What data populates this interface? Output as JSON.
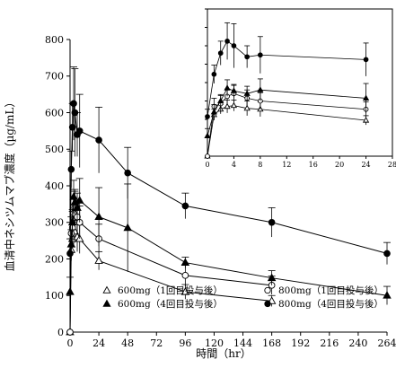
{
  "chart_data": [
    {
      "id": "main",
      "type": "line",
      "xlabel": "時間（hr）",
      "ylabel": "血清中ネシツムマブ濃度（µg/mL）",
      "xlim": [
        0,
        264
      ],
      "ylim": [
        0,
        800
      ],
      "xticks": [
        0,
        24,
        48,
        72,
        96,
        120,
        144,
        168,
        192,
        216,
        240,
        264
      ],
      "yticks": [
        0,
        100,
        200,
        300,
        400,
        500,
        600,
        700,
        800
      ],
      "grid": false,
      "legend_position": "bottom-center",
      "series": [
        {
          "key": "s600_first",
          "name": "600mg（1回目投与後）",
          "marker": "triangle-open",
          "x": [
            0,
            1,
            2,
            3,
            4,
            6,
            8,
            24,
            96,
            168
          ],
          "y": [
            0,
            225,
            255,
            270,
            275,
            260,
            255,
            195,
            110,
            85
          ],
          "err": [
            0,
            30,
            25,
            35,
            30,
            40,
            40,
            25,
            20,
            15
          ]
        },
        {
          "key": "s800_first",
          "name": "800mg（1回目投与後）",
          "marker": "circle-open",
          "x": [
            0,
            1,
            2,
            3,
            4,
            6,
            8,
            24,
            96,
            168
          ],
          "y": [
            0,
            270,
            285,
            325,
            340,
            315,
            300,
            255,
            155,
            128
          ],
          "err": [
            0,
            45,
            45,
            40,
            45,
            45,
            45,
            40,
            30,
            25
          ]
        },
        {
          "key": "s600_fourth",
          "name": "600mg（4回目投与後）",
          "marker": "triangle-filled",
          "x": [
            0,
            1,
            2,
            3,
            4,
            6,
            8,
            24,
            48,
            96,
            168,
            264
          ],
          "y": [
            110,
            240,
            300,
            370,
            355,
            340,
            360,
            315,
            285,
            190,
            148,
            100
          ],
          "err": [
            40,
            40,
            35,
            45,
            35,
            40,
            60,
            80,
            120,
            15,
            20,
            25
          ]
        },
        {
          "key": "s800_fourth",
          "name": "800mg（4回目投与後）",
          "marker": "circle-filled",
          "x": [
            0,
            1,
            2,
            3,
            4,
            6,
            8,
            24,
            48,
            96,
            168,
            264
          ],
          "y": [
            215,
            445,
            560,
            625,
            600,
            540,
            550,
            525,
            435,
            345,
            300,
            215
          ],
          "err": [
            40,
            50,
            65,
            100,
            120,
            60,
            100,
            90,
            70,
            35,
            40,
            30
          ]
        }
      ]
    },
    {
      "id": "inset",
      "type": "line",
      "xlim": [
        0,
        28
      ],
      "ylim": [
        0,
        800
      ],
      "xticks": [
        0,
        4,
        8,
        12,
        16,
        20,
        24,
        28
      ],
      "yticks": [
        0,
        100,
        200,
        300,
        400,
        500,
        600,
        700,
        800
      ],
      "grid": false,
      "series": [
        {
          "key": "s600_first",
          "marker": "triangle-open",
          "x": [
            0,
            1,
            2,
            3,
            4,
            6,
            8,
            24
          ],
          "y": [
            0,
            225,
            255,
            270,
            275,
            260,
            255,
            195
          ],
          "err": [
            0,
            30,
            25,
            35,
            30,
            40,
            40,
            25
          ]
        },
        {
          "key": "s800_first",
          "marker": "circle-open",
          "x": [
            0,
            1,
            2,
            3,
            4,
            6,
            8,
            24
          ],
          "y": [
            0,
            270,
            285,
            325,
            340,
            315,
            300,
            255
          ],
          "err": [
            0,
            45,
            45,
            40,
            45,
            45,
            45,
            40
          ]
        },
        {
          "key": "s600_fourth",
          "marker": "triangle-filled",
          "x": [
            0,
            1,
            2,
            3,
            4,
            6,
            8,
            24
          ],
          "y": [
            110,
            240,
            300,
            370,
            355,
            340,
            360,
            315
          ],
          "err": [
            40,
            40,
            35,
            45,
            35,
            40,
            60,
            80
          ]
        },
        {
          "key": "s800_fourth",
          "marker": "circle-filled",
          "x": [
            0,
            1,
            2,
            3,
            4,
            6,
            8,
            24
          ],
          "y": [
            215,
            445,
            560,
            625,
            600,
            540,
            550,
            525
          ],
          "err": [
            40,
            50,
            65,
            100,
            120,
            60,
            100,
            90
          ]
        }
      ]
    }
  ]
}
